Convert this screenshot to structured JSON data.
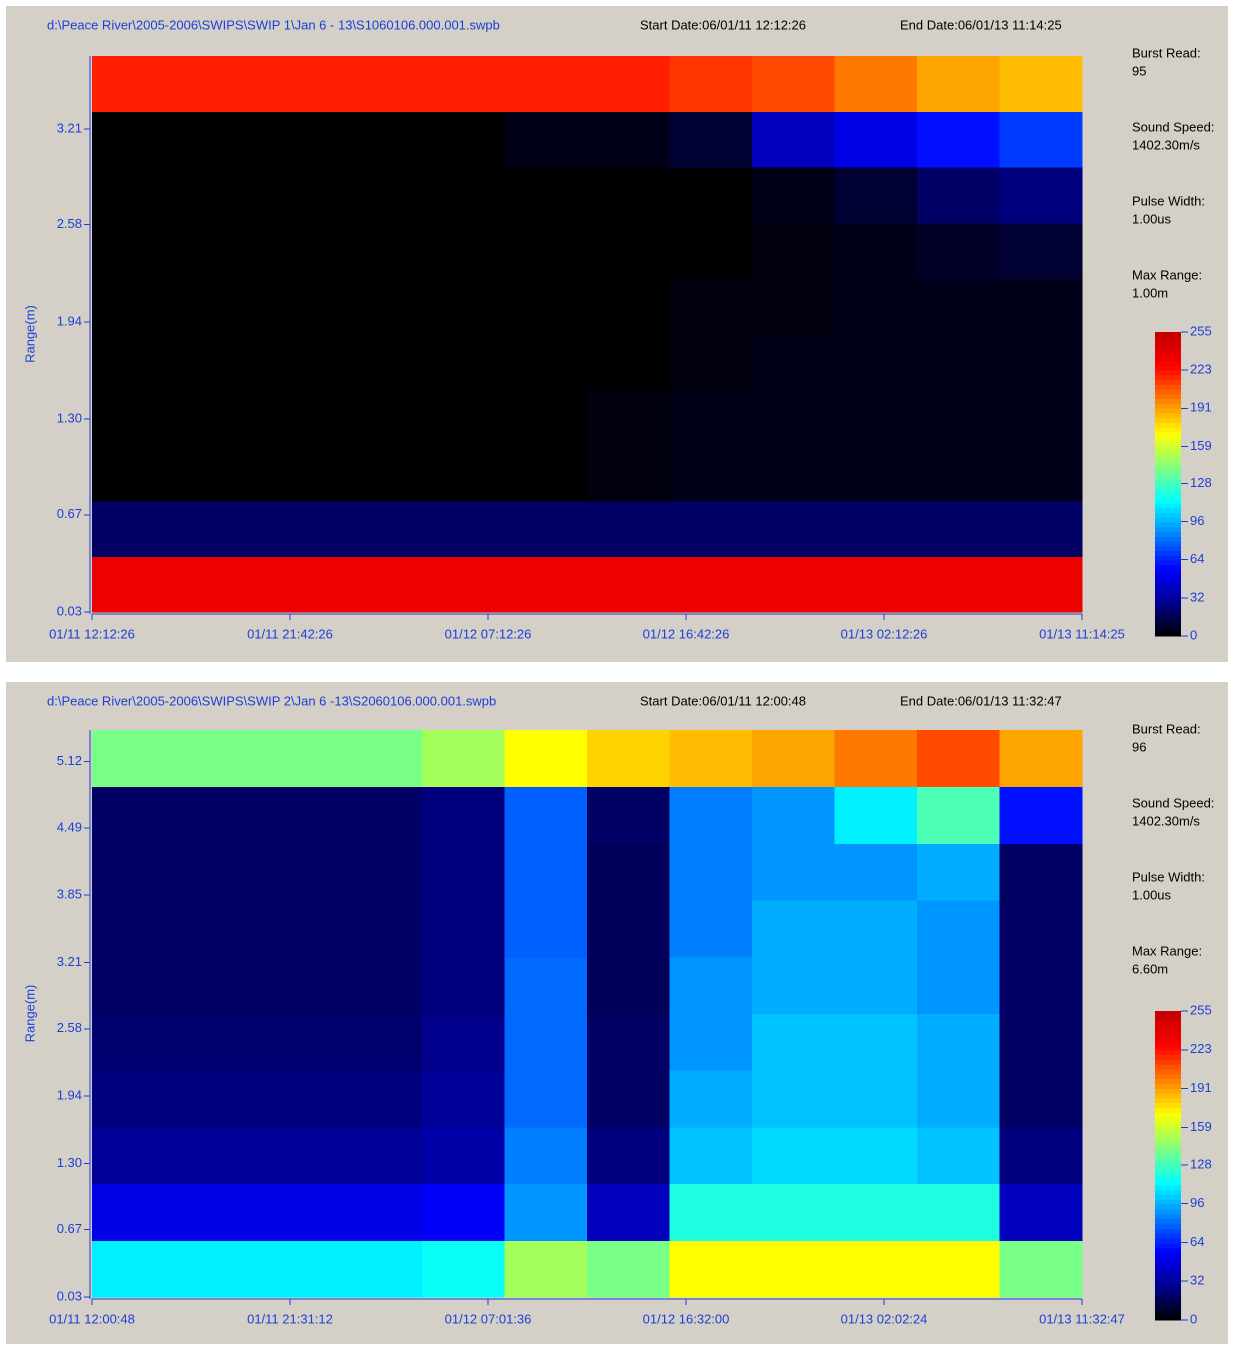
{
  "chart_data": [
    {
      "type": "heatmap",
      "title": "d:\\Peace River\\2005-2006\\SWIPS\\SWIP 1\\Jan 6 - 13\\S1060106.000.001.swpb",
      "start_date": "Start Date:06/01/11 12:12:26",
      "end_date": "End Date:06/01/13 11:14:25",
      "annotations": [
        {
          "label": "Burst Read:",
          "value": 95
        },
        {
          "label": "Sound Speed:",
          "value": "1402.30m/s"
        },
        {
          "label": "Pulse Width:",
          "value": "1.00us"
        },
        {
          "label": "Max Range:",
          "value": "1.00m"
        }
      ],
      "ylabel": "Range(m)",
      "ylim": [
        0.03,
        3.69
      ],
      "yticks": [
        0.03,
        0.67,
        {
          "value": 1.3,
          "label": "1.30"
        },
        1.94,
        2.58,
        3.21
      ],
      "categories": [
        "01/11 12:12:26",
        "01/11 21:42:26",
        "01/12 07:12:26",
        "01/12 16:42:26",
        "01/13 02:12:26",
        "01/13 11:14:25"
      ],
      "z": [
        [
          235,
          235,
          235,
          235,
          235,
          235,
          235,
          235,
          235,
          235,
          235,
          235
        ],
        [
          20,
          20,
          20,
          20,
          20,
          20,
          20,
          20,
          20,
          20,
          20,
          20
        ],
        [
          0,
          0,
          0,
          0,
          0,
          0,
          3,
          5,
          5,
          5,
          5,
          5
        ],
        [
          0,
          0,
          0,
          0,
          0,
          0,
          3,
          5,
          5,
          5,
          5,
          5
        ],
        [
          0,
          0,
          0,
          0,
          0,
          0,
          0,
          3,
          5,
          5,
          5,
          5
        ],
        [
          0,
          0,
          0,
          0,
          0,
          0,
          0,
          3,
          3,
          5,
          5,
          5
        ],
        [
          0,
          0,
          0,
          0,
          0,
          0,
          0,
          0,
          3,
          5,
          8,
          10
        ],
        [
          0,
          0,
          0,
          0,
          0,
          0,
          0,
          0,
          5,
          10,
          20,
          25
        ],
        [
          0,
          0,
          0,
          0,
          0,
          5,
          5,
          10,
          40,
          50,
          60,
          70
        ],
        [
          220,
          220,
          220,
          220,
          220,
          220,
          220,
          215,
          210,
          200,
          190,
          185
        ]
      ],
      "zlim": [
        0,
        255
      ],
      "zticks": [
        0,
        32,
        64,
        96,
        128,
        159,
        191,
        223,
        255
      ],
      "colormap": [
        "#000000",
        "#00008f",
        "#0000ff",
        "#0080ff",
        "#00ffff",
        "#80ff80",
        "#ffff00",
        "#ff8000",
        "#ff0000",
        "#c00000"
      ]
    },
    {
      "type": "heatmap",
      "title": "d:\\Peace River\\2005-2006\\SWIPS\\SWIP 2\\Jan 6 -13\\S2060106.000.001.swpb",
      "start_date": "Start Date:06/01/11 12:00:48",
      "end_date": "End Date:06/01/13 11:32:47",
      "annotations": [
        {
          "label": "Burst Read:",
          "value": 96
        },
        {
          "label": "Sound Speed:",
          "value": "1402.30m/s"
        },
        {
          "label": "Pulse Width:",
          "value": "1.00us"
        },
        {
          "label": "Max Range:",
          "value": "6.60m"
        }
      ],
      "ylabel": "Range(m)",
      "ylim": [
        0.03,
        5.42
      ],
      "yticks": [
        0.03,
        0.67,
        {
          "value": 1.3,
          "label": "1.30"
        },
        1.94,
        2.58,
        3.21,
        3.85,
        4.49,
        5.12
      ],
      "categories": [
        "01/11 12:00:48",
        "01/11 21:31:12",
        "01/12 07:01:36",
        "01/12 16:32:00",
        "01/13 02:02:24",
        "01/13 11:32:47"
      ],
      "z": [
        [
          110,
          110,
          110,
          110,
          115,
          150,
          140,
          170,
          170,
          170,
          170,
          140
        ],
        [
          50,
          50,
          50,
          50,
          55,
          90,
          40,
          120,
          120,
          120,
          120,
          40
        ],
        [
          30,
          30,
          30,
          30,
          35,
          85,
          25,
          100,
          105,
          105,
          100,
          25
        ],
        [
          25,
          25,
          25,
          25,
          30,
          80,
          20,
          95,
          100,
          100,
          95,
          20
        ],
        [
          22,
          22,
          22,
          22,
          28,
          80,
          20,
          90,
          100,
          100,
          95,
          20
        ],
        [
          20,
          20,
          20,
          20,
          25,
          80,
          18,
          90,
          95,
          95,
          90,
          20
        ],
        [
          20,
          20,
          20,
          20,
          25,
          78,
          18,
          85,
          95,
          95,
          90,
          20
        ],
        [
          20,
          20,
          20,
          20,
          25,
          78,
          18,
          85,
          90,
          90,
          95,
          20
        ],
        [
          20,
          20,
          20,
          20,
          25,
          78,
          20,
          85,
          90,
          110,
          130,
          60
        ],
        [
          140,
          140,
          140,
          140,
          150,
          170,
          180,
          185,
          190,
          200,
          210,
          190
        ]
      ],
      "zlim": [
        0,
        255
      ],
      "zticks": [
        0,
        32,
        64,
        96,
        128,
        159,
        191,
        223,
        255
      ],
      "colormap": [
        "#000000",
        "#00008f",
        "#0000ff",
        "#0080ff",
        "#00ffff",
        "#80ff80",
        "#ffff00",
        "#ff8000",
        "#ff0000",
        "#c00000"
      ]
    }
  ]
}
